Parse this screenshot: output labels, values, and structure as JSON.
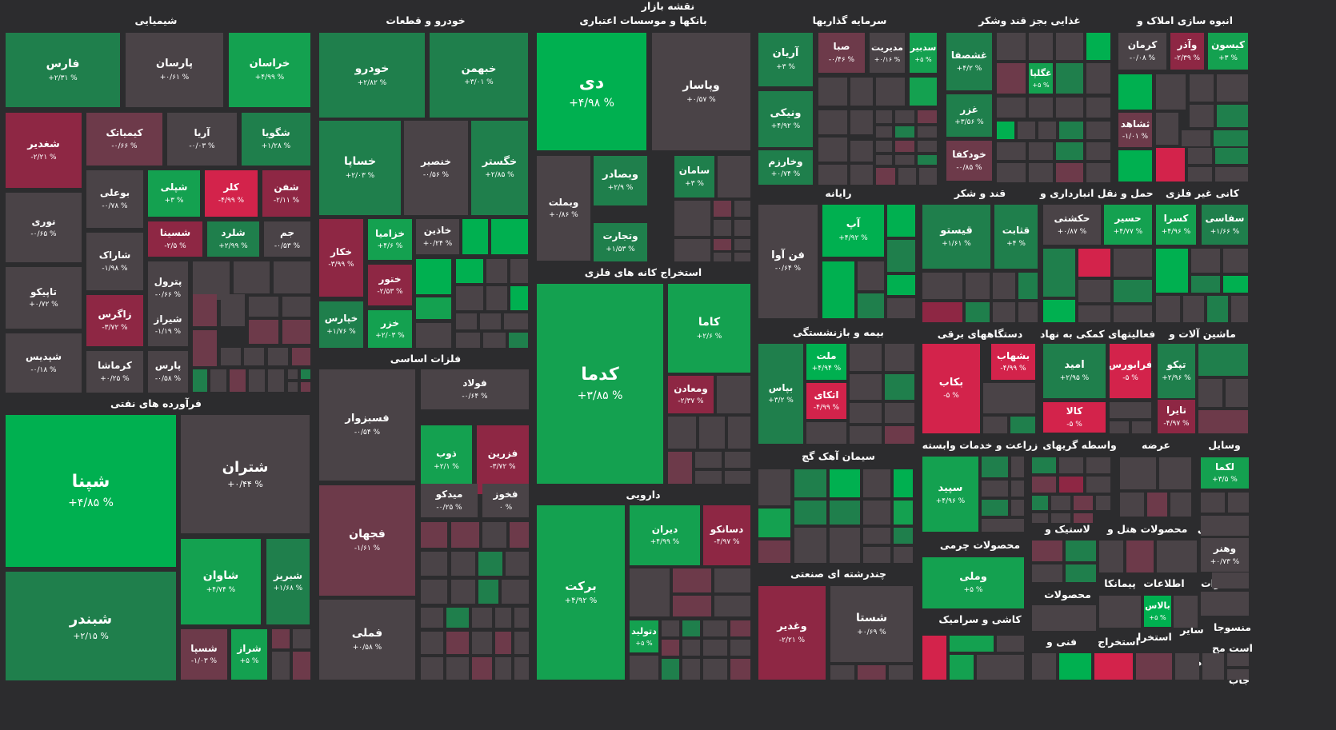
{
  "title": "نقشه بازار",
  "colors": {
    "background": "#2c2c2e",
    "strong_positive": "#00b050",
    "positive": "#14a150",
    "weak_positive": "#1f7f4c",
    "neutral": "#4a4347",
    "weak_negative": "#6d3a4a",
    "negative": "#8e2744",
    "strong_negative": "#d3234b"
  },
  "sections": {
    "chemical": "شیمیایی",
    "auto": "خودرو و قطعات",
    "banks": "بانکها و موسسات اعتباری",
    "investment": "سرمایه گذاریها",
    "food": "غذایی بجز قند وشکر",
    "realestate": "انبوه سازی املاک و",
    "oil": "فرآورده های نفتی",
    "basic_metals": "فلزات اساسی",
    "metal_ore": "استخراج کانه های فلزی",
    "computer": "رایانه",
    "sugar": "قند و شکر",
    "transport": "حمل و نقل انبارداری و",
    "nonmetal_minerals": "کانی غیر فلزی",
    "insurance": "بیمه و بازنشستگی",
    "electrical": "دستگاههای برقی",
    "support": "فعالیتهای کمکی به نهاد",
    "machinery": "ماشین آلات و",
    "pharma": "دارویی",
    "cement": "سیمان آهک گچ",
    "agriculture": "زراعت و خدمات وابسته",
    "intermediaries": "واسطه گریهای",
    "supply": "عرضه",
    "vehicles": "وسایل",
    "leather": "محصولات چرمی",
    "rubber": "لاستیک و",
    "hotel": "هتل و",
    "products": "محصولات",
    "activities": "فعالیتهای",
    "multi_industry": "چندرشته ای صنعتی",
    "tiles": "کاشی و سرامیک",
    "products2": "محصولات",
    "contracting": "پیمانکا",
    "telecom": "اطلاعات",
    "tech_services": "مخابرات",
    "technical": "فنی و",
    "extraction": "استخراج",
    "extraction2": "استخرا",
    "other": "سایر",
    "textiles": "منسوجا",
    "asset_mgmt": "است مح",
    "retail": "خرده",
    "jab": "جاب"
  },
  "tiles": [
    {
      "name": "فارس",
      "pct": "+۲/۳۱ %"
    },
    {
      "name": "پارسان",
      "pct": "+۰/۶۱ %"
    },
    {
      "name": "خراسان",
      "pct": "+۴/۹۹ %"
    },
    {
      "name": "شغدیر",
      "pct": "-۲/۲۱ %"
    },
    {
      "name": "کیمیاتک",
      "pct": "-۰/۶۶ %"
    },
    {
      "name": "آریا",
      "pct": "-۰/۰۳ %"
    },
    {
      "name": "شگویا",
      "pct": "+۱/۲۸ %"
    },
    {
      "name": "بوعلی",
      "pct": "-۰/۷۸ %"
    },
    {
      "name": "شپلی",
      "pct": "+۳ %"
    },
    {
      "name": "کلر",
      "pct": "-۴/۹۹ %"
    },
    {
      "name": "شفن",
      "pct": "-۲/۱۱ %"
    },
    {
      "name": "نوری",
      "pct": "-۰/۶۵ %"
    },
    {
      "name": "شسینا",
      "pct": "-۲/۵ %"
    },
    {
      "name": "شلرد",
      "pct": "+۲/۹۹ %"
    },
    {
      "name": "جم",
      "pct": "-۰/۵۳ %"
    },
    {
      "name": "شاراک",
      "pct": "-۱/۹۸ %"
    },
    {
      "name": "پترول",
      "pct": "-۰/۶۶ %"
    },
    {
      "name": "تاپیکو",
      "pct": "+۰/۷۲ %"
    },
    {
      "name": "زاگرس",
      "pct": "-۳/۷۲ %"
    },
    {
      "name": "شیراز",
      "pct": "-۱/۱۹ %"
    },
    {
      "name": "شپدیس",
      "pct": "-۰/۱۸ %"
    },
    {
      "name": "کرماشا",
      "pct": "+۰/۲۵ %"
    },
    {
      "name": "پارس",
      "pct": "-۰/۵۸ %"
    },
    {
      "name": "خودرو",
      "pct": "+۲/۸۲ %"
    },
    {
      "name": "خبهمن",
      "pct": "+۳/۰۱ %"
    },
    {
      "name": "خساپا",
      "pct": "+۲/۰۳ %"
    },
    {
      "name": "خنصیر",
      "pct": "-۰/۵۶ %"
    },
    {
      "name": "خگستر",
      "pct": "+۲/۸۵ %"
    },
    {
      "name": "خکار",
      "pct": "-۳/۹۹ %"
    },
    {
      "name": "خزامیا",
      "pct": "+۴/۶ %"
    },
    {
      "name": "خاذین",
      "pct": "+۰/۲۴ %"
    },
    {
      "name": "ختور",
      "pct": "-۲/۵۳ %"
    },
    {
      "name": "خپارس",
      "pct": "+۱/۷۶ %"
    },
    {
      "name": "خزر",
      "pct": "+۲/۰۳ %"
    },
    {
      "name": "دی",
      "pct": "+۴/۹۸ %"
    },
    {
      "name": "وپاسار",
      "pct": "+۰/۵۷ %"
    },
    {
      "name": "وبصادر",
      "pct": "+۲/۹ %"
    },
    {
      "name": "سامان",
      "pct": "+۳ %"
    },
    {
      "name": "وبملت",
      "pct": "+۰/۸۶ %"
    },
    {
      "name": "وتجارت",
      "pct": "+۱/۵۳ %"
    },
    {
      "name": "آریان",
      "pct": "+۳ %"
    },
    {
      "name": "صبا",
      "pct": "-۰/۴۶ %"
    },
    {
      "name": "مدیریت",
      "pct": "+۰/۱۶ %"
    },
    {
      "name": "سدبیر",
      "pct": "+۵ %"
    },
    {
      "name": "ونیکی",
      "pct": "+۴/۹۲ %"
    },
    {
      "name": "وخارزم",
      "pct": "+۰/۷۴ %"
    },
    {
      "name": "غشصفا",
      "pct": "+۴/۲ %"
    },
    {
      "name": "غگلپا",
      "pct": "+۵ %"
    },
    {
      "name": "غزر",
      "pct": "+۳/۵۶ %"
    },
    {
      "name": "خودکفا",
      "pct": "-۰/۸۵ %"
    },
    {
      "name": "کرمان",
      "pct": "-۰/۰۸ %"
    },
    {
      "name": "وآذر",
      "pct": "-۲/۳۹ %"
    },
    {
      "name": "کیسون",
      "pct": "+۳ %"
    },
    {
      "name": "ثشاهد",
      "pct": "-۱/۰۱ %"
    },
    {
      "name": "شپنا",
      "pct": "+۴/۸۵ %"
    },
    {
      "name": "شتران",
      "pct": "+۰/۴۴ %"
    },
    {
      "name": "شاوان",
      "pct": "+۴/۷۴ %"
    },
    {
      "name": "شبریز",
      "pct": "+۱/۶۸ %"
    },
    {
      "name": "شبندر",
      "pct": "+۲/۱۵ %"
    },
    {
      "name": "شسپا",
      "pct": "-۱/۰۳ %"
    },
    {
      "name": "شراز",
      "pct": "+۵ %"
    },
    {
      "name": "فولاد",
      "pct": "-۰/۶۴ %"
    },
    {
      "name": "فسبزوار",
      "pct": "-۰/۵۴ %"
    },
    {
      "name": "ذوب",
      "pct": "+۲/۱ %"
    },
    {
      "name": "فزرین",
      "pct": "-۳/۷۲ %"
    },
    {
      "name": "میدکو",
      "pct": "-۰/۲۵ %"
    },
    {
      "name": "فخوز",
      "pct": "۰ %"
    },
    {
      "name": "فجهان",
      "pct": "-۱/۶۱ %"
    },
    {
      "name": "فملی",
      "pct": "+۰/۵۸ %"
    },
    {
      "name": "کدما",
      "pct": "+۳/۸۵ %"
    },
    {
      "name": "کاما",
      "pct": "+۲/۶ %"
    },
    {
      "name": "ومعادن",
      "pct": "-۲/۳۷ %"
    },
    {
      "name": "برکت",
      "pct": "+۴/۹۲ %"
    },
    {
      "name": "دیران",
      "pct": "+۴/۹۹ %"
    },
    {
      "name": "دسانکو",
      "pct": "-۴/۹۷ %"
    },
    {
      "name": "دتولید",
      "pct": "+۵ %"
    },
    {
      "name": "فن آوا",
      "pct": "-۰/۶۴ %"
    },
    {
      "name": "آپ",
      "pct": "+۴/۹۲ %"
    },
    {
      "name": "قیستو",
      "pct": "+۱/۶۱ %"
    },
    {
      "name": "قثابت",
      "pct": "+۴ %"
    },
    {
      "name": "حکشتی",
      "pct": "+۰/۸۷ %"
    },
    {
      "name": "حسیر",
      "pct": "+۴/۷۷ %"
    },
    {
      "name": "کسرا",
      "pct": "+۴/۹۶ %"
    },
    {
      "name": "سفاسی",
      "pct": "+۱/۶۶ %"
    },
    {
      "name": "ملت",
      "pct": "+۴/۹۴ %"
    },
    {
      "name": "اتکای",
      "pct": "-۴/۹۹ %"
    },
    {
      "name": "بپاس",
      "pct": "+۳/۲ %"
    },
    {
      "name": "بشهاب",
      "pct": "-۴/۹۹ %"
    },
    {
      "name": "بکاب",
      "pct": "-۵ %"
    },
    {
      "name": "امید",
      "pct": "+۲/۹۵ %"
    },
    {
      "name": "فرابورس",
      "pct": "-۵ %"
    },
    {
      "name": "کالا",
      "pct": "-۵ %"
    },
    {
      "name": "تپکو",
      "pct": "+۲/۹۶ %"
    },
    {
      "name": "تایرا",
      "pct": "-۴/۹۷ %"
    },
    {
      "name": "سپید",
      "pct": "+۴/۹۶ %"
    },
    {
      "name": "لکما",
      "pct": "+۳/۵ %"
    },
    {
      "name": "وهنر",
      "pct": "+۰/۷۳ %"
    },
    {
      "name": "وملی",
      "pct": "+۵ %"
    },
    {
      "name": "بالاس",
      "pct": "+۵ %"
    },
    {
      "name": "وغدیر",
      "pct": "-۲/۲۱ %"
    },
    {
      "name": "شستا",
      "pct": "+۰/۶۹ %"
    }
  ]
}
